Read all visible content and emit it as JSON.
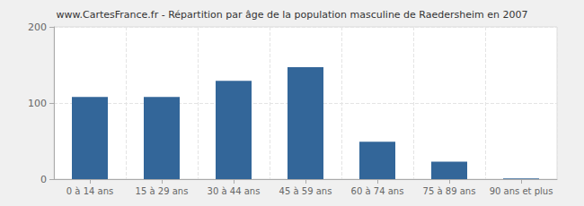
{
  "chart_data": {
    "type": "bar",
    "title": "www.CartesFrance.fr - Répartition par âge de la population masculine de Raedersheim en 2007",
    "categories": [
      "0 à 14 ans",
      "15 à 29 ans",
      "30 à 44 ans",
      "45 à 59 ans",
      "60 à 74 ans",
      "75 à 89 ans",
      "90 ans et plus"
    ],
    "values": [
      108,
      108,
      129,
      147,
      49,
      23,
      1
    ],
    "color": "#336699",
    "ylim": [
      0,
      200
    ],
    "yticks": [
      0,
      100,
      200
    ],
    "grid": true
  }
}
